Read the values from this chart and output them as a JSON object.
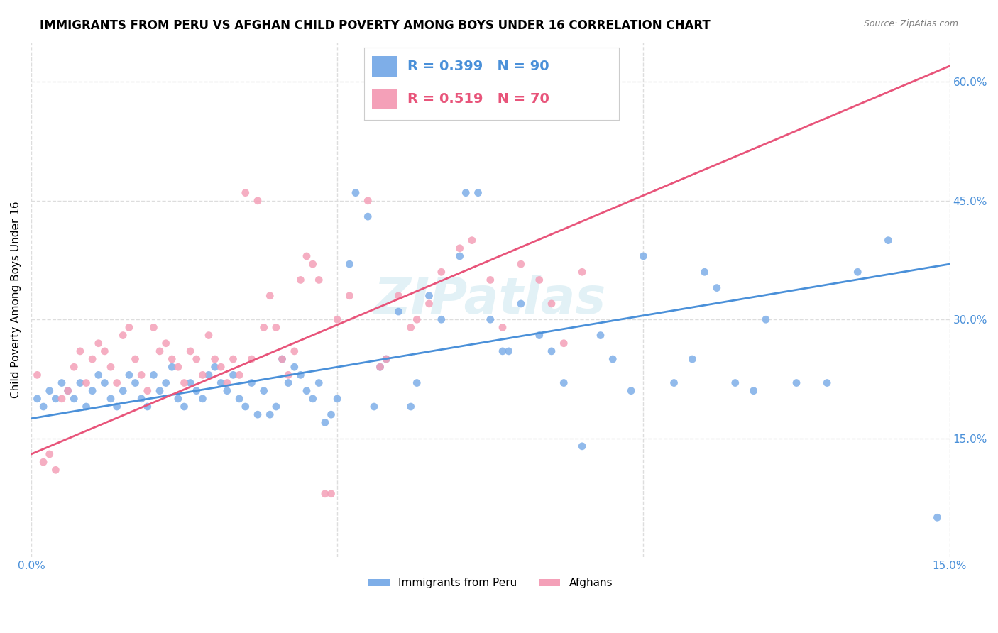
{
  "title": "IMMIGRANTS FROM PERU VS AFGHAN CHILD POVERTY AMONG BOYS UNDER 16 CORRELATION CHART",
  "source": "Source: ZipAtlas.com",
  "ylabel": "Child Poverty Among Boys Under 16",
  "xlim": [
    0.0,
    0.15
  ],
  "ylim": [
    0.0,
    0.65
  ],
  "xticks": [
    0.0,
    0.05,
    0.1,
    0.15
  ],
  "ytick_labels_right": [
    "15.0%",
    "30.0%",
    "45.0%",
    "60.0%"
  ],
  "ytick_vals_right": [
    0.15,
    0.3,
    0.45,
    0.6
  ],
  "blue_color": "#7eaee8",
  "pink_color": "#f4a0b8",
  "blue_line_color": "#4a90d9",
  "pink_line_color": "#e8547a",
  "legend_R_blue": "0.399",
  "legend_N_blue": "90",
  "legend_R_pink": "0.519",
  "legend_N_pink": "70",
  "watermark": "ZIPatlas",
  "background_color": "#ffffff",
  "grid_color": "#dddddd",
  "blue_scatter": [
    [
      0.001,
      0.2
    ],
    [
      0.002,
      0.19
    ],
    [
      0.003,
      0.21
    ],
    [
      0.004,
      0.2
    ],
    [
      0.005,
      0.22
    ],
    [
      0.006,
      0.21
    ],
    [
      0.007,
      0.2
    ],
    [
      0.008,
      0.22
    ],
    [
      0.009,
      0.19
    ],
    [
      0.01,
      0.21
    ],
    [
      0.011,
      0.23
    ],
    [
      0.012,
      0.22
    ],
    [
      0.013,
      0.2
    ],
    [
      0.014,
      0.19
    ],
    [
      0.015,
      0.21
    ],
    [
      0.016,
      0.23
    ],
    [
      0.017,
      0.22
    ],
    [
      0.018,
      0.2
    ],
    [
      0.019,
      0.19
    ],
    [
      0.02,
      0.23
    ],
    [
      0.021,
      0.21
    ],
    [
      0.022,
      0.22
    ],
    [
      0.023,
      0.24
    ],
    [
      0.024,
      0.2
    ],
    [
      0.025,
      0.19
    ],
    [
      0.026,
      0.22
    ],
    [
      0.027,
      0.21
    ],
    [
      0.028,
      0.2
    ],
    [
      0.029,
      0.23
    ],
    [
      0.03,
      0.24
    ],
    [
      0.031,
      0.22
    ],
    [
      0.032,
      0.21
    ],
    [
      0.033,
      0.23
    ],
    [
      0.034,
      0.2
    ],
    [
      0.035,
      0.19
    ],
    [
      0.036,
      0.22
    ],
    [
      0.037,
      0.18
    ],
    [
      0.038,
      0.21
    ],
    [
      0.039,
      0.18
    ],
    [
      0.04,
      0.19
    ],
    [
      0.041,
      0.25
    ],
    [
      0.042,
      0.22
    ],
    [
      0.043,
      0.24
    ],
    [
      0.044,
      0.23
    ],
    [
      0.045,
      0.21
    ],
    [
      0.046,
      0.2
    ],
    [
      0.047,
      0.22
    ],
    [
      0.048,
      0.17
    ],
    [
      0.049,
      0.18
    ],
    [
      0.05,
      0.2
    ],
    [
      0.052,
      0.37
    ],
    [
      0.053,
      0.46
    ],
    [
      0.055,
      0.43
    ],
    [
      0.056,
      0.19
    ],
    [
      0.057,
      0.24
    ],
    [
      0.058,
      0.25
    ],
    [
      0.06,
      0.31
    ],
    [
      0.062,
      0.19
    ],
    [
      0.063,
      0.22
    ],
    [
      0.065,
      0.33
    ],
    [
      0.067,
      0.3
    ],
    [
      0.07,
      0.38
    ],
    [
      0.071,
      0.46
    ],
    [
      0.073,
      0.46
    ],
    [
      0.075,
      0.3
    ],
    [
      0.077,
      0.26
    ],
    [
      0.078,
      0.26
    ],
    [
      0.08,
      0.32
    ],
    [
      0.083,
      0.28
    ],
    [
      0.085,
      0.26
    ],
    [
      0.087,
      0.22
    ],
    [
      0.09,
      0.14
    ],
    [
      0.093,
      0.28
    ],
    [
      0.095,
      0.25
    ],
    [
      0.098,
      0.21
    ],
    [
      0.1,
      0.38
    ],
    [
      0.105,
      0.22
    ],
    [
      0.108,
      0.25
    ],
    [
      0.11,
      0.36
    ],
    [
      0.112,
      0.34
    ],
    [
      0.115,
      0.22
    ],
    [
      0.118,
      0.21
    ],
    [
      0.12,
      0.3
    ],
    [
      0.125,
      0.22
    ],
    [
      0.13,
      0.22
    ],
    [
      0.135,
      0.36
    ],
    [
      0.14,
      0.4
    ],
    [
      0.148,
      0.05
    ]
  ],
  "pink_scatter": [
    [
      0.001,
      0.23
    ],
    [
      0.002,
      0.12
    ],
    [
      0.003,
      0.13
    ],
    [
      0.004,
      0.11
    ],
    [
      0.005,
      0.2
    ],
    [
      0.006,
      0.21
    ],
    [
      0.007,
      0.24
    ],
    [
      0.008,
      0.26
    ],
    [
      0.009,
      0.22
    ],
    [
      0.01,
      0.25
    ],
    [
      0.011,
      0.27
    ],
    [
      0.012,
      0.26
    ],
    [
      0.013,
      0.24
    ],
    [
      0.014,
      0.22
    ],
    [
      0.015,
      0.28
    ],
    [
      0.016,
      0.29
    ],
    [
      0.017,
      0.25
    ],
    [
      0.018,
      0.23
    ],
    [
      0.019,
      0.21
    ],
    [
      0.02,
      0.29
    ],
    [
      0.021,
      0.26
    ],
    [
      0.022,
      0.27
    ],
    [
      0.023,
      0.25
    ],
    [
      0.024,
      0.24
    ],
    [
      0.025,
      0.22
    ],
    [
      0.026,
      0.26
    ],
    [
      0.027,
      0.25
    ],
    [
      0.028,
      0.23
    ],
    [
      0.029,
      0.28
    ],
    [
      0.03,
      0.25
    ],
    [
      0.031,
      0.24
    ],
    [
      0.032,
      0.22
    ],
    [
      0.033,
      0.25
    ],
    [
      0.034,
      0.23
    ],
    [
      0.035,
      0.46
    ],
    [
      0.036,
      0.25
    ],
    [
      0.037,
      0.45
    ],
    [
      0.038,
      0.29
    ],
    [
      0.039,
      0.33
    ],
    [
      0.04,
      0.29
    ],
    [
      0.041,
      0.25
    ],
    [
      0.042,
      0.23
    ],
    [
      0.043,
      0.26
    ],
    [
      0.044,
      0.35
    ],
    [
      0.045,
      0.38
    ],
    [
      0.046,
      0.37
    ],
    [
      0.047,
      0.35
    ],
    [
      0.048,
      0.08
    ],
    [
      0.049,
      0.08
    ],
    [
      0.05,
      0.3
    ],
    [
      0.052,
      0.33
    ],
    [
      0.055,
      0.45
    ],
    [
      0.057,
      0.24
    ],
    [
      0.058,
      0.25
    ],
    [
      0.06,
      0.33
    ],
    [
      0.062,
      0.29
    ],
    [
      0.063,
      0.3
    ],
    [
      0.065,
      0.32
    ],
    [
      0.067,
      0.36
    ],
    [
      0.07,
      0.39
    ],
    [
      0.072,
      0.4
    ],
    [
      0.075,
      0.35
    ],
    [
      0.077,
      0.29
    ],
    [
      0.08,
      0.37
    ],
    [
      0.083,
      0.35
    ],
    [
      0.085,
      0.32
    ],
    [
      0.087,
      0.27
    ],
    [
      0.09,
      0.36
    ]
  ],
  "blue_line": [
    [
      0.0,
      0.175
    ],
    [
      0.15,
      0.37
    ]
  ],
  "pink_line": [
    [
      0.0,
      0.13
    ],
    [
      0.15,
      0.62
    ]
  ]
}
